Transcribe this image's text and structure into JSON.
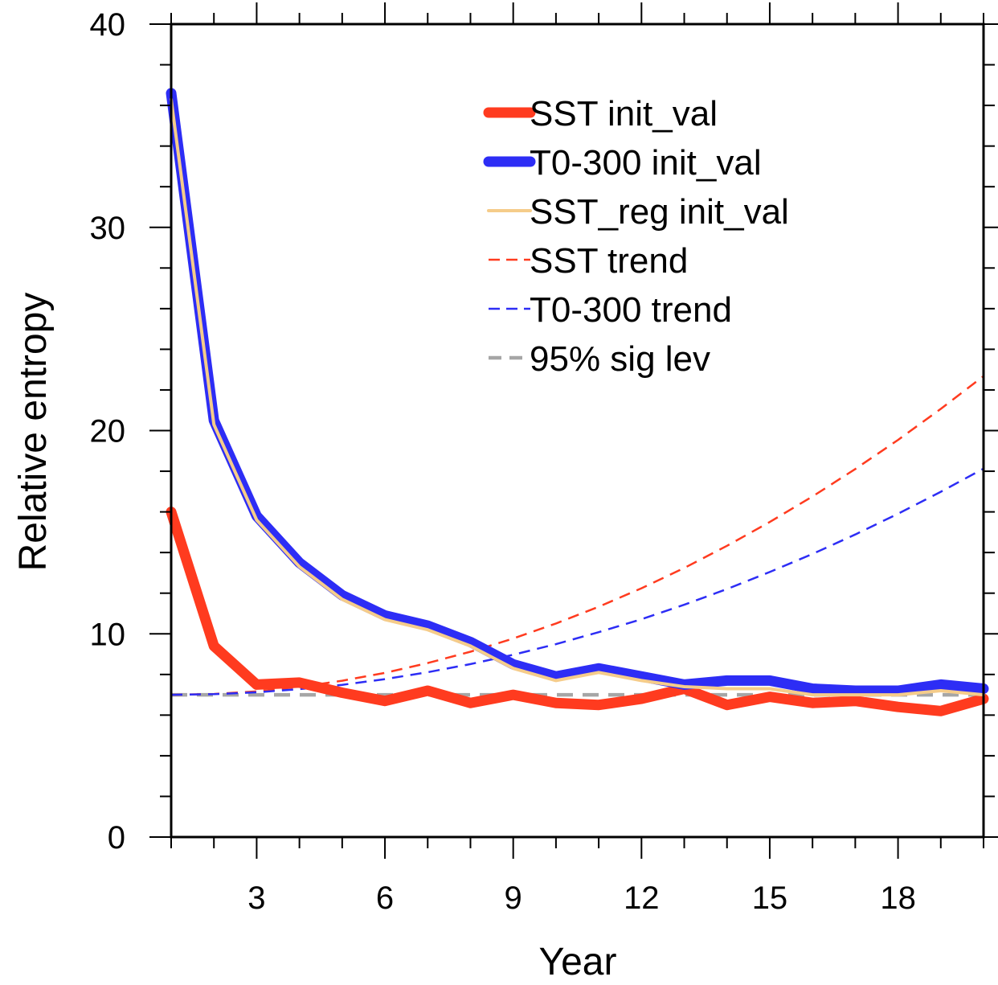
{
  "chart_data": {
    "type": "line",
    "xlabel": "Year",
    "ylabel": "Relative entropy",
    "xlim": [
      1,
      20
    ],
    "ylim": [
      0,
      40
    ],
    "x_ticks": [
      3,
      6,
      9,
      12,
      15,
      18
    ],
    "y_ticks": [
      0,
      10,
      20,
      30,
      40
    ],
    "legend_position": "top-right",
    "grid": false,
    "x": [
      1,
      2,
      3,
      4,
      5,
      6,
      7,
      8,
      9,
      10,
      11,
      12,
      13,
      14,
      15,
      16,
      17,
      18,
      19,
      20
    ],
    "series": [
      {
        "name": "SST init_val",
        "color": "#ff3b1f",
        "style": "solid-thick",
        "values": [
          16.0,
          9.4,
          7.5,
          7.6,
          7.1,
          6.7,
          7.2,
          6.6,
          7.0,
          6.6,
          6.5,
          6.8,
          7.3,
          6.5,
          6.9,
          6.6,
          6.7,
          6.4,
          6.2,
          6.8
        ]
      },
      {
        "name": "T0-300 init_val",
        "color": "#2d2df5",
        "style": "solid-thick",
        "values": [
          36.6,
          20.5,
          15.8,
          13.5,
          11.9,
          10.9,
          10.4,
          9.6,
          8.5,
          7.9,
          8.3,
          7.9,
          7.5,
          7.7,
          7.7,
          7.3,
          7.2,
          7.2,
          7.5,
          7.3
        ]
      },
      {
        "name": "SST_reg init_val",
        "color": "#f5cc8a",
        "style": "solid-thin",
        "values": [
          36.3,
          20.3,
          15.6,
          13.3,
          11.7,
          10.7,
          10.2,
          9.4,
          8.3,
          7.7,
          8.1,
          7.7,
          7.4,
          7.3,
          7.3,
          7.0,
          7.0,
          7.0,
          7.2,
          7.0
        ]
      },
      {
        "name": "SST trend",
        "color": "#ff3b1f",
        "style": "dashed",
        "values": [
          7.0,
          7.04,
          7.17,
          7.39,
          7.69,
          8.08,
          8.56,
          9.12,
          9.77,
          10.51,
          11.33,
          12.24,
          13.24,
          14.33,
          15.5,
          16.76,
          18.11,
          19.54,
          21.07,
          22.68
        ]
      },
      {
        "name": "T0-300 trend",
        "color": "#2d2df5",
        "style": "dashed",
        "values": [
          7.0,
          7.03,
          7.12,
          7.28,
          7.49,
          7.77,
          8.11,
          8.51,
          8.97,
          9.49,
          10.08,
          10.72,
          11.43,
          12.2,
          13.04,
          13.93,
          14.89,
          15.91,
          16.99,
          18.13
        ]
      },
      {
        "name": "95% sig lev",
        "color": "#a6a6a6",
        "style": "dashed-gray",
        "values": [
          7.0,
          7.0,
          7.0,
          7.0,
          7.0,
          7.0,
          7.0,
          7.0,
          7.0,
          7.0,
          7.0,
          7.0,
          7.0,
          7.0,
          7.0,
          7.0,
          7.0,
          7.0,
          7.0,
          7.0
        ]
      }
    ]
  }
}
